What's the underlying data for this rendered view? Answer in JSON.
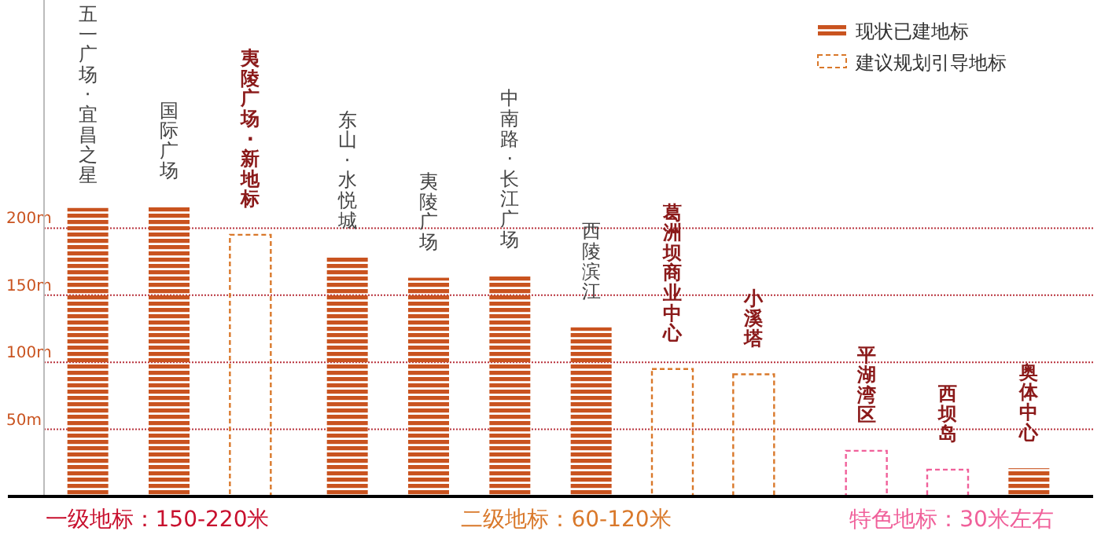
{
  "chart_data": {
    "type": "bar",
    "categories": [
      "五一广场·宜昌之星",
      "国际广场",
      "夷陵广场·新地标",
      "东山·水悦城",
      "夷陵广场",
      "中南路·长江广场",
      "西陵滨江",
      "葛洲坝商业中心",
      "小溪塔",
      "平湖湾区",
      "西坝岛",
      "奥体中心"
    ],
    "series": [
      {
        "name": "现状已建地标",
        "color": "#c9531f",
        "values": [
          215,
          216,
          null,
          179,
          163,
          165,
          126,
          null,
          null,
          null,
          null,
          21
        ]
      },
      {
        "name": "建议规划引导地标",
        "color": "#d9782a",
        "colors": [
          null,
          null,
          "#d9782a",
          null,
          null,
          null,
          null,
          "#d9782a",
          "#d9782a",
          "#f0609a",
          "#f0609a",
          null
        ],
        "values": [
          null,
          null,
          195,
          null,
          null,
          null,
          null,
          95,
          91,
          34,
          20,
          null
        ],
        "line_style": "dashed"
      }
    ],
    "ylim": [
      0,
      370
    ],
    "yticks": [
      {
        "value": 50,
        "label": "50m"
      },
      {
        "value": 100,
        "label": "100m"
      },
      {
        "value": 150,
        "label": "150m"
      },
      {
        "value": 200,
        "label": "200m"
      }
    ],
    "grid": "y",
    "legend": "top right",
    "annotations": [
      "一级地标：150-220米",
      "二级地标：60-120米",
      "特色地标：30米左右"
    ]
  }
}
